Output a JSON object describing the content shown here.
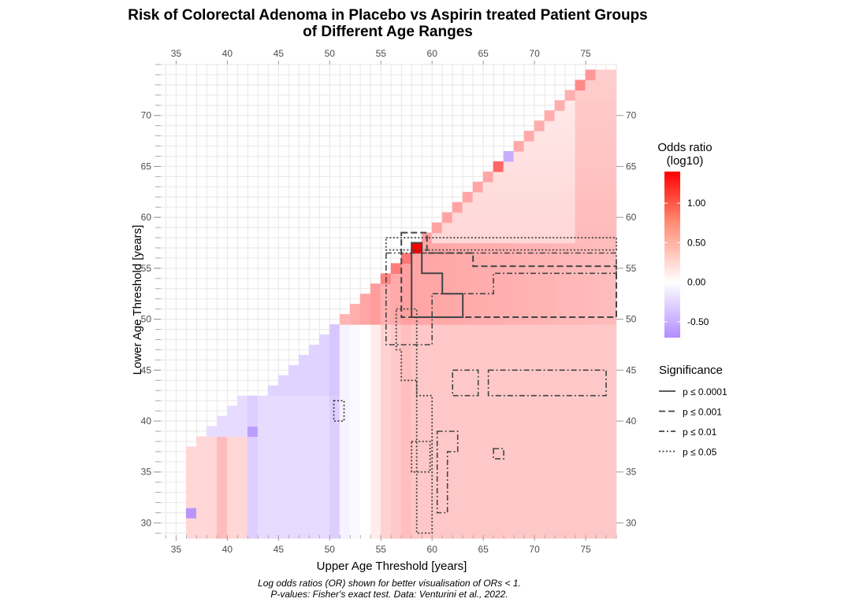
{
  "chart_data": {
    "type": "heatmap",
    "title": "Risk of Colorectal Adenoma in Placebo vs Aspirin treated Patient Groups",
    "title_line2": "of Different Age Ranges",
    "xlabel": "Upper Age Threshold [years]",
    "ylabel": "Lower Age Threshold [years]",
    "xlim": [
      33.5,
      78
    ],
    "ylim": [
      28.8,
      75
    ],
    "x_ticks": [
      "35",
      "40",
      "45",
      "50",
      "55",
      "60",
      "65",
      "70",
      "75"
    ],
    "x_tick_values": [
      35,
      40,
      45,
      50,
      55,
      60,
      65,
      70,
      75
    ],
    "y_ticks": [
      "30",
      "35",
      "40",
      "45",
      "50",
      "55",
      "60",
      "65",
      "70"
    ],
    "y_tick_values": [
      30,
      35,
      40,
      45,
      50,
      55,
      60,
      65,
      70
    ],
    "grid": true,
    "caption_line1": "Log odds ratios (OR) shown for better visualisation of ORs < 1.",
    "caption_line2": "P-values: Fisher's exact test. Data: Venturini et al., 2022.",
    "colorbar": {
      "title_line1": "Odds ratio",
      "title_line2": "(log10)",
      "range": [
        -0.7,
        1.4
      ],
      "ticks": [
        "1.00",
        "0.50",
        "0.00",
        "-0.50"
      ],
      "tick_values": [
        1.0,
        0.5,
        0.0,
        -0.5
      ],
      "low_color": "#b28cff",
      "mid_color": "#ffffff",
      "high_color": "#ff0000",
      "legend_position": "right"
    },
    "significance_legend": {
      "title": "Significance",
      "items": [
        {
          "label": "p ≤ 0.0001",
          "dash": "solid"
        },
        {
          "label": "p ≤ 0.001",
          "dash": "dashed"
        },
        {
          "label": "p ≤ 0.01",
          "dash": "dotdash"
        },
        {
          "label": "p ≤ 0.05",
          "dash": "dotted"
        }
      ],
      "line_color": "#444444"
    },
    "notable_cells": [
      {
        "upper": 58,
        "lower": 57,
        "log_or": 1.4
      },
      {
        "upper": 36,
        "lower": 31,
        "log_or": -0.65
      },
      {
        "upper": 42,
        "lower": 39,
        "log_or": -0.6
      },
      {
        "upper": 67,
        "lower": 66,
        "log_or": -0.5
      },
      {
        "upper": 66,
        "lower": 65,
        "log_or": 0.7
      },
      {
        "upper": 74,
        "lower": 73,
        "log_or": 0.5
      }
    ],
    "contours": [
      {
        "level": "p ≤ 0.0001",
        "region": "upper 58–64, lower 50–57"
      },
      {
        "level": "p ≤ 0.001",
        "region": "upper 58–78, lower 50–57"
      },
      {
        "level": "p ≤ 0.01",
        "region": "upper 55–78, lower 40–57"
      },
      {
        "level": "p ≤ 0.05",
        "region": "upper 55–78, lower 30–58"
      }
    ]
  }
}
